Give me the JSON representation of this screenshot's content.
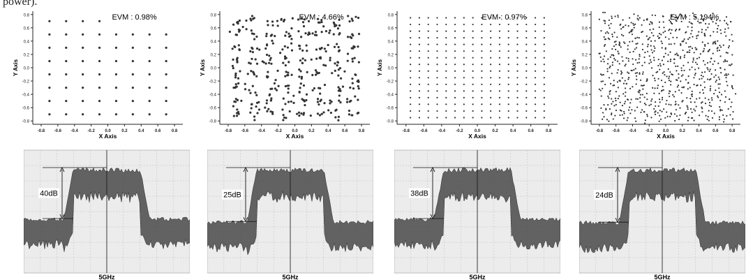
{
  "caption_fragment": "power).",
  "colors": {
    "point": "#333333",
    "axis": "#222222",
    "spectrum_bg": "#ececec",
    "spectrum_grid": "#bdbdbd",
    "spectrum_noise": "#4a4a4a"
  },
  "chart_data": [
    {
      "type": "scatter",
      "panel": "constellation-1",
      "evm_label": "EVM : 0.98%",
      "xlabel": "X Axis",
      "ylabel": "Y Axis",
      "xlim": [
        -0.9,
        0.9
      ],
      "ylim": [
        -0.85,
        0.85
      ],
      "xticks": [
        "-0.8",
        "-0.6",
        "-0.4",
        "-0.2",
        "0.0",
        "0.2",
        "0.4",
        "0.6",
        "0.8"
      ],
      "yticks": [
        "0.8",
        "0.6",
        "0.4",
        "0.2",
        "0.0",
        "-0.2",
        "-0.4",
        "-0.6",
        "-0.8"
      ],
      "grid_levels": [
        -0.7,
        -0.5,
        -0.3,
        -0.1,
        0.1,
        0.3,
        0.5,
        0.7
      ],
      "spread": 0.004,
      "density": 1
    },
    {
      "type": "scatter",
      "panel": "constellation-2",
      "evm_label": "EVM : 4.66%",
      "xlabel": "X Axis",
      "ylabel": "Y Axis",
      "xlim": [
        -0.9,
        0.9
      ],
      "ylim": [
        -0.85,
        0.85
      ],
      "xticks": [
        "-0.8",
        "-0.6",
        "-0.4",
        "-0.2",
        "0.0",
        "0.2",
        "0.4",
        "0.6",
        "0.8"
      ],
      "yticks": [
        "0.8",
        "0.6",
        "0.4",
        "0.2",
        "0.0",
        "-0.2",
        "-0.4",
        "-0.6",
        "-0.8"
      ],
      "grid_levels": [
        -0.7,
        -0.5,
        -0.3,
        -0.1,
        0.1,
        0.3,
        0.5,
        0.7
      ],
      "spread": 0.035,
      "density": 6
    },
    {
      "type": "scatter",
      "panel": "constellation-3",
      "evm_label": "EVM : 0.97%",
      "xlabel": "X Axis",
      "ylabel": "Y Axis",
      "xlim": [
        -0.9,
        0.9
      ],
      "ylim": [
        -0.85,
        0.85
      ],
      "xticks": [
        "-0.8",
        "-0.6",
        "-0.4",
        "-0.2",
        "0.0",
        "0.2",
        "0.4",
        "0.6",
        "0.8"
      ],
      "yticks": [
        "0.8",
        "0.6",
        "0.4",
        "0.2",
        "0.0",
        "-0.2",
        "-0.4",
        "-0.6",
        "-0.8"
      ],
      "grid_levels": [
        -0.75,
        -0.65,
        -0.55,
        -0.45,
        -0.35,
        -0.25,
        -0.15,
        -0.05,
        0.05,
        0.15,
        0.25,
        0.35,
        0.45,
        0.55,
        0.65,
        0.75
      ],
      "spread": 0.003,
      "density": 1
    },
    {
      "type": "scatter",
      "panel": "constellation-4",
      "evm_label": "EVM : 5.194%",
      "xlabel": "X Axis",
      "ylabel": "Y Axis",
      "xlim": [
        -0.9,
        0.9
      ],
      "ylim": [
        -0.85,
        0.85
      ],
      "xticks": [
        "-0.8",
        "-0.6",
        "-0.4",
        "-0.2",
        "0.0",
        "0.2",
        "0.4",
        "0.6",
        "0.8"
      ],
      "yticks": [
        "0.8",
        "0.6",
        "0.4",
        "0.2",
        "0.0",
        "-0.2",
        "-0.4",
        "-0.6",
        "-0.8"
      ],
      "grid_levels": [
        -0.75,
        -0.65,
        -0.55,
        -0.45,
        -0.35,
        -0.25,
        -0.15,
        -0.05,
        0.05,
        0.15,
        0.25,
        0.35,
        0.45,
        0.55,
        0.65,
        0.75
      ],
      "spread": 0.03,
      "density": 3
    },
    {
      "type": "area",
      "panel": "spectrum-1",
      "center_label": "5GHz",
      "ratio_label": "40dB",
      "ratio_db": 40
    },
    {
      "type": "area",
      "panel": "spectrum-2",
      "center_label": "5GHz",
      "ratio_label": "25dB",
      "ratio_db": 25
    },
    {
      "type": "area",
      "panel": "spectrum-3",
      "center_label": "5GHz",
      "ratio_label": "38dB",
      "ratio_db": 38
    },
    {
      "type": "area",
      "panel": "spectrum-4",
      "center_label": "5GHz",
      "ratio_label": "24dB",
      "ratio_db": 24
    }
  ]
}
